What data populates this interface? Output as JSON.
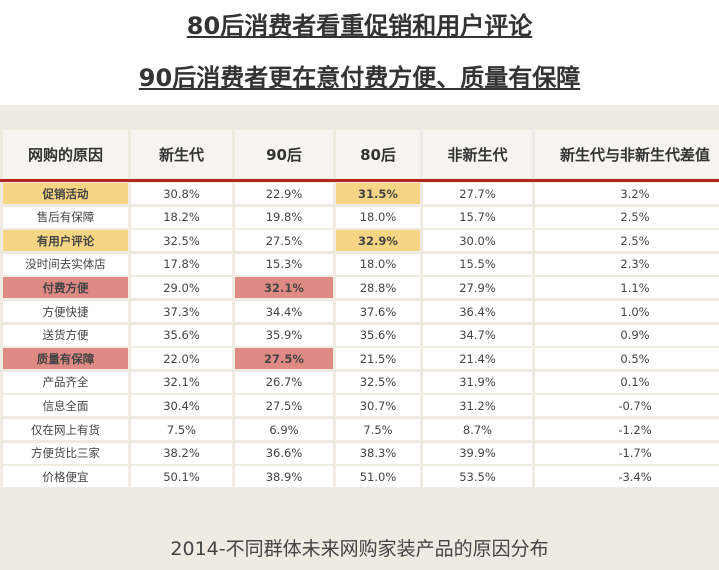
{
  "header": {
    "title_lines": [
      "80后消费者看重促销和用户评论",
      "90后消费者更在意付费方便、质量有保障"
    ]
  },
  "table": {
    "columns": [
      "网购的原因",
      "新生代",
      "90后",
      "80后",
      "非新生代",
      "新生代与非新生代差值"
    ],
    "rows": [
      [
        "促销活动",
        "30.8%",
        "22.9%",
        "31.5%",
        "27.7%",
        "3.2%"
      ],
      [
        "售后有保障",
        "18.2%",
        "19.8%",
        "18.0%",
        "15.7%",
        "2.5%"
      ],
      [
        "有用户评论",
        "32.5%",
        "27.5%",
        "32.9%",
        "30.0%",
        "2.5%"
      ],
      [
        "没时间去实体店",
        "17.8%",
        "15.3%",
        "18.0%",
        "15.5%",
        "2.3%"
      ],
      [
        "付费方便",
        "29.0%",
        "32.1%",
        "28.8%",
        "27.9%",
        "1.1%"
      ],
      [
        "方便快捷",
        "37.3%",
        "34.4%",
        "37.6%",
        "36.4%",
        "1.0%"
      ],
      [
        "送货方便",
        "35.6%",
        "35.9%",
        "35.6%",
        "34.7%",
        "0.9%"
      ],
      [
        "质量有保障",
        "22.0%",
        "27.5%",
        "21.5%",
        "21.4%",
        "0.5%"
      ],
      [
        "产品齐全",
        "32.1%",
        "26.7%",
        "32.5%",
        "31.9%",
        "0.1%"
      ],
      [
        "信息全面",
        "30.4%",
        "27.5%",
        "30.7%",
        "31.2%",
        "-0.7%"
      ],
      [
        "仅在网上有货",
        "7.5%",
        "6.9%",
        "7.5%",
        "8.7%",
        "-1.2%"
      ],
      [
        "方便货比三家",
        "38.2%",
        "36.6%",
        "38.3%",
        "39.9%",
        "-1.7%"
      ],
      [
        "价格便宜",
        "50.1%",
        "38.9%",
        "51.0%",
        "53.5%",
        "-3.4%"
      ]
    ]
  },
  "caption": "2014-不同群体未来网购家装产品的原因分布"
}
